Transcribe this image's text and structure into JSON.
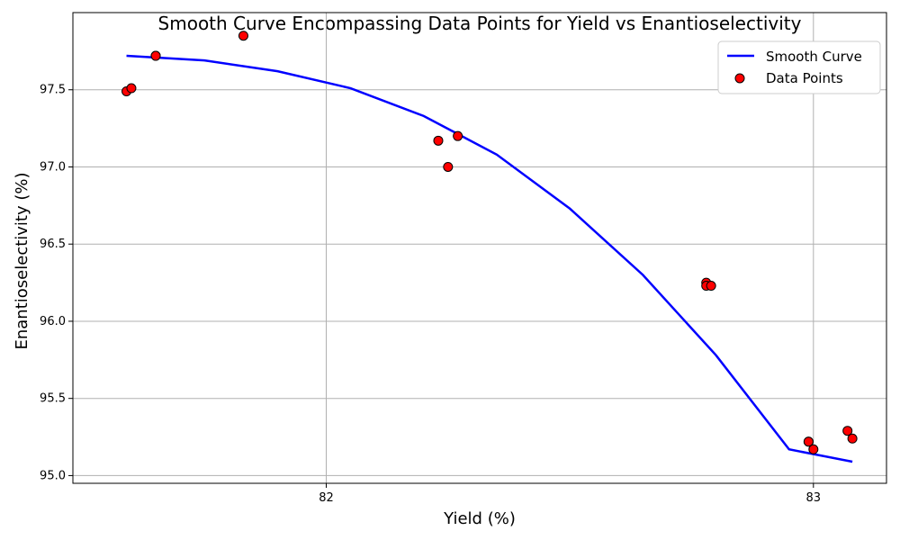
{
  "chart_data": {
    "type": "scatter",
    "title": "Smooth Curve Encompassing Data Points for Yield vs Enantioselectivity",
    "xlabel": "Yield (%)",
    "ylabel": "Enantioselectivity (%)",
    "xlim": [
      81.48,
      83.15
    ],
    "ylim": [
      94.95,
      98.0
    ],
    "xticks": [
      82,
      83
    ],
    "xtick_labels": [
      "82",
      "83"
    ],
    "yticks": [
      95.0,
      95.5,
      96.0,
      96.5,
      97.0,
      97.5
    ],
    "ytick_labels": [
      "95.0",
      "95.5",
      "96.0",
      "96.5",
      "97.0",
      "97.5"
    ],
    "grid": true,
    "legend_position": "top-right",
    "series": [
      {
        "name": "Smooth Curve",
        "kind": "line",
        "color": "#0000ff",
        "x": [
          81.59,
          81.75,
          81.9,
          82.05,
          82.2,
          82.35,
          82.5,
          82.65,
          82.8,
          82.95,
          83.08
        ],
        "y": [
          97.72,
          97.69,
          97.62,
          97.51,
          97.33,
          97.08,
          96.73,
          96.3,
          95.78,
          95.17,
          95.09
        ]
      },
      {
        "name": "Data Points",
        "kind": "scatter",
        "color": "#ff0000",
        "edge_color": "#000000",
        "x": [
          81.59,
          81.6,
          81.65,
          81.65,
          81.83,
          82.23,
          82.25,
          82.27,
          82.78,
          82.78,
          82.79,
          82.99,
          82.99,
          83.0,
          83.07,
          83.08
        ],
        "y": [
          97.49,
          97.51,
          97.72,
          97.72,
          97.85,
          97.17,
          97.0,
          97.2,
          96.25,
          96.23,
          96.23,
          95.22,
          95.22,
          95.17,
          95.29,
          95.24
        ]
      }
    ]
  }
}
